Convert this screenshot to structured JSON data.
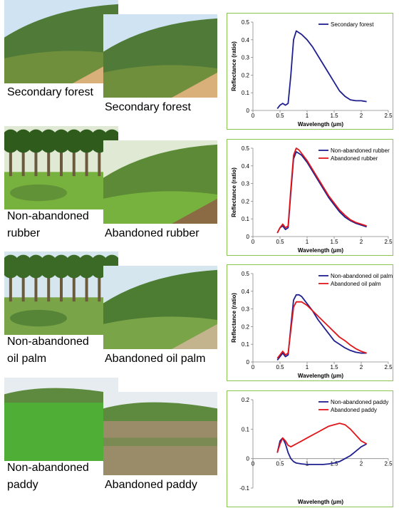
{
  "panels": [
    {
      "left_label": [
        "Secondary forest"
      ],
      "right_label": "Secondary forest",
      "colors": {
        "sky": "#cfe3f2",
        "hill": "#4f7a38",
        "ground": "#6f8f3d",
        "soil": "#d9b07a",
        "veg": "#3f6e22"
      },
      "chart_data": {
        "type": "line",
        "xlabel": "Wavelength (μm)",
        "ylabel": "Reflectance (ratio)",
        "xlim": [
          0,
          2.5
        ],
        "ylim": [
          0,
          0.5
        ],
        "xticks": [
          "0",
          "0.5",
          "1",
          "1.5",
          "2",
          "2.5"
        ],
        "yticks": [
          "0",
          "0.1",
          "0.2",
          "0.3",
          "0.4",
          "0.5"
        ],
        "legend": "top-right",
        "series": [
          {
            "name": "Secondary forest",
            "color": "#1f1f8f",
            "x": [
              0.45,
              0.5,
              0.55,
              0.6,
              0.65,
              0.7,
              0.75,
              0.8,
              0.85,
              0.9,
              1.0,
              1.1,
              1.2,
              1.3,
              1.4,
              1.5,
              1.6,
              1.7,
              1.8,
              1.9,
              2.0,
              2.1
            ],
            "y": [
              0.01,
              0.03,
              0.04,
              0.03,
              0.04,
              0.2,
              0.4,
              0.45,
              0.44,
              0.43,
              0.4,
              0.36,
              0.31,
              0.26,
              0.21,
              0.16,
              0.11,
              0.08,
              0.06,
              0.055,
              0.055,
              0.05
            ]
          }
        ]
      }
    },
    {
      "left_label": [
        "Non-abandoned",
        "rubber"
      ],
      "right_label": "Abandoned rubber",
      "colors": {
        "sky": "#dfe9d4",
        "hill": "#5d8a36",
        "ground": "#78b23e",
        "soil": "#8a6b44",
        "veg": "#2f5c1c"
      },
      "chart_data": {
        "type": "line",
        "xlabel": "Wavelength (μm)",
        "ylabel": "Reflectance (ratio)",
        "xlim": [
          0,
          2.5
        ],
        "ylim": [
          0,
          0.5
        ],
        "xticks": [
          "0",
          "0.5",
          "1",
          "1.5",
          "2",
          "2.5"
        ],
        "yticks": [
          "0",
          "0.1",
          "0.2",
          "0.3",
          "0.4",
          "0.5"
        ],
        "legend": "top-right",
        "series": [
          {
            "name": "Non-abandoned rubber",
            "color": "#1f1f8f",
            "x": [
              0.45,
              0.5,
              0.55,
              0.6,
              0.65,
              0.7,
              0.75,
              0.8,
              0.85,
              0.9,
              1.0,
              1.1,
              1.2,
              1.3,
              1.4,
              1.5,
              1.6,
              1.7,
              1.8,
              1.9,
              2.0,
              2.1
            ],
            "y": [
              0.02,
              0.05,
              0.06,
              0.04,
              0.05,
              0.25,
              0.44,
              0.48,
              0.47,
              0.46,
              0.42,
              0.37,
              0.32,
              0.27,
              0.22,
              0.18,
              0.14,
              0.11,
              0.09,
              0.075,
              0.065,
              0.055
            ]
          },
          {
            "name": "Abandoned rubber",
            "color": "#e0161b",
            "x": [
              0.45,
              0.5,
              0.55,
              0.6,
              0.65,
              0.7,
              0.75,
              0.8,
              0.85,
              0.9,
              1.0,
              1.1,
              1.2,
              1.3,
              1.4,
              1.5,
              1.6,
              1.7,
              1.8,
              1.9,
              2.0,
              2.1
            ],
            "y": [
              0.02,
              0.05,
              0.07,
              0.05,
              0.06,
              0.27,
              0.46,
              0.5,
              0.49,
              0.47,
              0.43,
              0.38,
              0.33,
              0.28,
              0.23,
              0.19,
              0.15,
              0.12,
              0.095,
              0.08,
              0.07,
              0.06
            ]
          }
        ]
      }
    },
    {
      "left_label": [
        "Non-abandoned",
        "oil palm"
      ],
      "right_label": "Abandoned oil palm",
      "colors": {
        "sky": "#d6e6ee",
        "hill": "#4d7d33",
        "ground": "#7aa448",
        "soil": "#c4b48e",
        "veg": "#3a6a25"
      },
      "chart_data": {
        "type": "line",
        "xlabel": "Wavelength (μm)",
        "ylabel": "Reflectance (ratio)",
        "xlim": [
          0,
          2.5
        ],
        "ylim": [
          0,
          0.5
        ],
        "xticks": [
          "0",
          "0.5",
          "1",
          "1.5",
          "2",
          "2.5"
        ],
        "yticks": [
          "0",
          "0.1",
          "0.2",
          "0.3",
          "0.4",
          "0.5"
        ],
        "legend": "top-right",
        "series": [
          {
            "name": "Non-abandoned oil palm",
            "color": "#1f1f8f",
            "x": [
              0.45,
              0.5,
              0.55,
              0.6,
              0.65,
              0.7,
              0.75,
              0.8,
              0.85,
              0.9,
              1.0,
              1.1,
              1.2,
              1.3,
              1.4,
              1.5,
              1.6,
              1.7,
              1.8,
              1.9,
              2.0,
              2.1
            ],
            "y": [
              0.01,
              0.03,
              0.05,
              0.03,
              0.04,
              0.2,
              0.35,
              0.38,
              0.38,
              0.37,
              0.33,
              0.29,
              0.24,
              0.2,
              0.16,
              0.12,
              0.1,
              0.08,
              0.065,
              0.055,
              0.05,
              0.05
            ]
          },
          {
            "name": "Abandoned oil palm",
            "color": "#e0161b",
            "x": [
              0.45,
              0.5,
              0.55,
              0.6,
              0.65,
              0.7,
              0.75,
              0.8,
              0.85,
              0.9,
              1.0,
              1.1,
              1.2,
              1.3,
              1.4,
              1.5,
              1.6,
              1.7,
              1.8,
              1.9,
              2.0,
              2.1
            ],
            "y": [
              0.02,
              0.04,
              0.06,
              0.04,
              0.05,
              0.18,
              0.31,
              0.34,
              0.34,
              0.34,
              0.32,
              0.29,
              0.26,
              0.23,
              0.2,
              0.17,
              0.14,
              0.12,
              0.095,
              0.075,
              0.06,
              0.05
            ]
          }
        ]
      }
    },
    {
      "left_label": [
        "Non-abandoned",
        "paddy"
      ],
      "right_label": "Abandoned paddy",
      "colors": {
        "sky": "#e6ecef",
        "hill": "#5d8a3e",
        "ground": "#4fae36",
        "soil": "#9a8b69",
        "veg": "#6e8a4a"
      },
      "chart_data": {
        "type": "line",
        "xlabel": "Wavelength (μm)",
        "ylabel": "",
        "xlim": [
          0,
          2.5
        ],
        "ylim": [
          -0.1,
          0.2
        ],
        "xticks": [
          "0",
          "0.5",
          "1",
          "1.5",
          "2",
          "2.5"
        ],
        "yticks": [
          "-0.1",
          "0",
          "0.1",
          "0.2"
        ],
        "legend": "top-right",
        "series": [
          {
            "name": "Non-abandoned paddy",
            "color": "#1f1f8f",
            "x": [
              0.45,
              0.5,
              0.55,
              0.6,
              0.65,
              0.7,
              0.75,
              0.8,
              0.9,
              1.0,
              1.1,
              1.2,
              1.3,
              1.4,
              1.5,
              1.6,
              1.7,
              1.8,
              1.9,
              2.0,
              2.1
            ],
            "y": [
              0.02,
              0.06,
              0.07,
              0.05,
              0.02,
              0.0,
              -0.01,
              -0.015,
              -0.018,
              -0.02,
              -0.02,
              -0.02,
              -0.02,
              -0.018,
              -0.015,
              -0.01,
              0.0,
              0.01,
              0.025,
              0.04,
              0.05
            ]
          },
          {
            "name": "Abandoned paddy",
            "color": "#e0161b",
            "x": [
              0.45,
              0.5,
              0.55,
              0.6,
              0.65,
              0.7,
              0.75,
              0.8,
              0.9,
              1.0,
              1.1,
              1.2,
              1.3,
              1.4,
              1.5,
              1.6,
              1.7,
              1.8,
              1.9,
              2.0,
              2.1
            ],
            "y": [
              0.02,
              0.05,
              0.07,
              0.06,
              0.045,
              0.04,
              0.045,
              0.05,
              0.06,
              0.07,
              0.08,
              0.09,
              0.1,
              0.11,
              0.115,
              0.12,
              0.115,
              0.1,
              0.08,
              0.06,
              0.05
            ]
          }
        ]
      }
    }
  ]
}
